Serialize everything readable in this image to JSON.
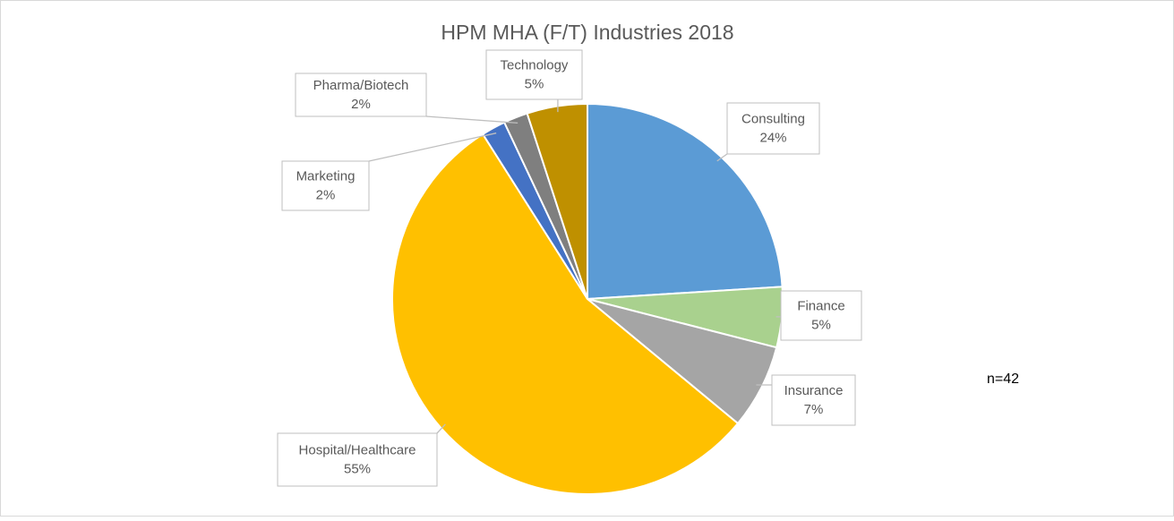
{
  "chart_data": {
    "type": "pie",
    "title": "HPM MHA (F/T) Industries 2018",
    "categories": [
      "Consulting",
      "Finance",
      "Insurance",
      "Hospital/Healthcare",
      "Marketing",
      "Pharma/Biotech",
      "Technology"
    ],
    "values": [
      24,
      5,
      7,
      55,
      2,
      2,
      5
    ],
    "value_labels": [
      "24%",
      "5%",
      "7%",
      "55%",
      "2%",
      "2%",
      "5%"
    ],
    "colors": [
      "#5b9bd5",
      "#a9d18e",
      "#a5a5a5",
      "#ffc000",
      "#4472c4",
      "#7f7f7f",
      "#bf9000"
    ],
    "annotation": "n=42"
  }
}
